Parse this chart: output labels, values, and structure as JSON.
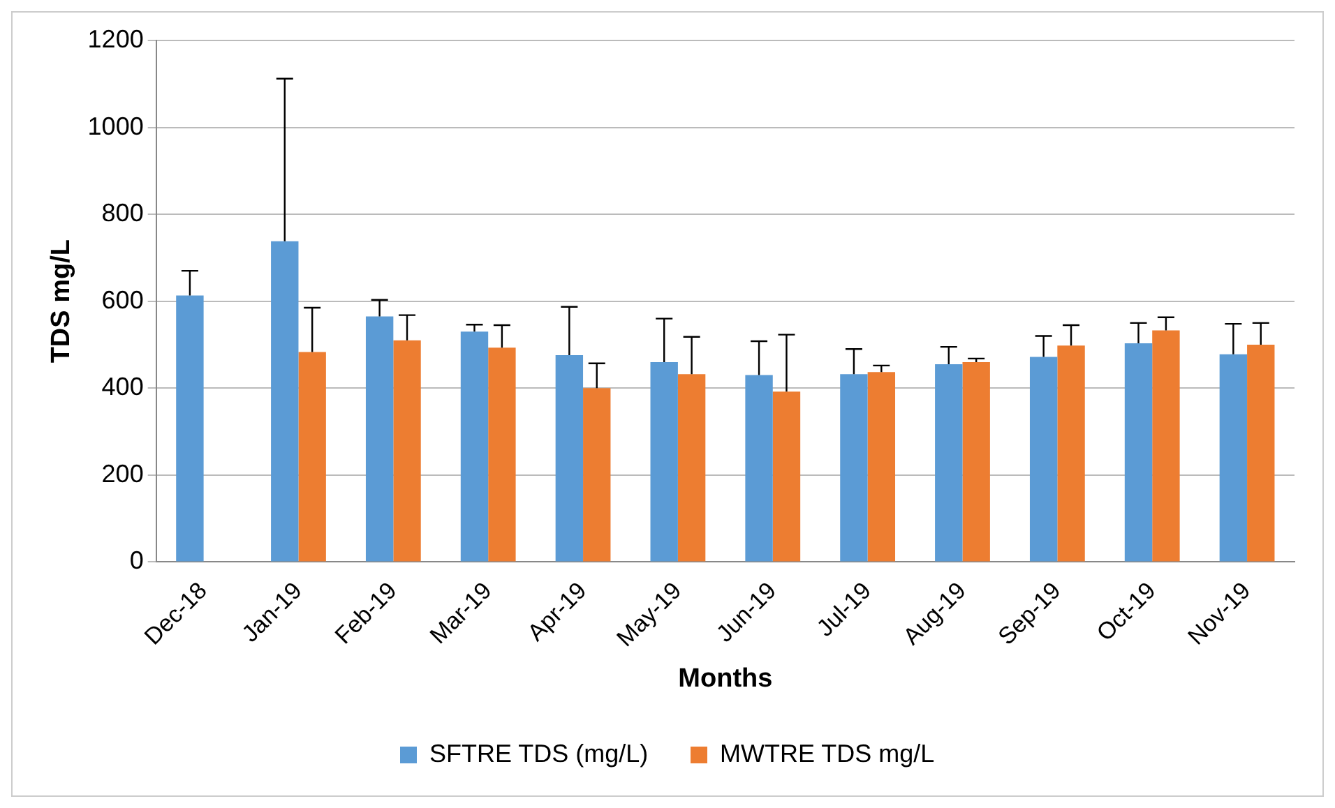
{
  "chart_data": {
    "type": "bar",
    "xlabel": "Months",
    "ylabel": "TDS mg/L",
    "categories": [
      "Dec-18",
      "Jan-19",
      "Feb-19",
      "Mar-19",
      "Apr-19",
      "May-19",
      "Jun-19",
      "Jul-19",
      "Aug-19",
      "Sep-19",
      "Oct-19",
      "Nov-19"
    ],
    "series": [
      {
        "name": "SFTRE TDS (mg/L)",
        "color": "#5b9bd5",
        "values": [
          613,
          738,
          565,
          530,
          476,
          460,
          430,
          432,
          455,
          472,
          503,
          478
        ],
        "errors": [
          [
            613,
            670
          ],
          [
            738,
            1112
          ],
          [
            565,
            603
          ],
          [
            530,
            546
          ],
          [
            476,
            587
          ],
          [
            460,
            560
          ],
          [
            430,
            508
          ],
          [
            432,
            490
          ],
          [
            455,
            495
          ],
          [
            472,
            520
          ],
          [
            503,
            550
          ],
          [
            478,
            548
          ]
        ]
      },
      {
        "name": "MWTRE TDS mg/L",
        "color": "#ed7d31",
        "values": [
          null,
          483,
          510,
          493,
          400,
          432,
          392,
          437,
          460,
          498,
          533,
          500
        ],
        "errors": [
          null,
          [
            483,
            585
          ],
          [
            510,
            568
          ],
          [
            493,
            545
          ],
          [
            400,
            457
          ],
          [
            432,
            518
          ],
          [
            392,
            523
          ],
          [
            437,
            452
          ],
          [
            460,
            468
          ],
          [
            498,
            545
          ],
          [
            533,
            563
          ],
          [
            500,
            550
          ]
        ]
      }
    ],
    "ylim": [
      0,
      1200
    ],
    "yticks": [
      0,
      200,
      400,
      600,
      800,
      1000,
      1200
    ],
    "grid": "y",
    "legend": "bottom"
  }
}
